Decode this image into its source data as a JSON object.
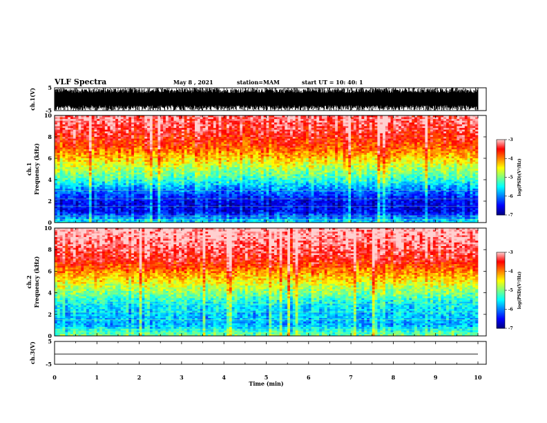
{
  "header": {
    "title": "VLF Spectra",
    "date": "May 8 , 2021",
    "station": "station=MAM",
    "start_ut": "start UT = 10: 40: 1"
  },
  "chart_data": [
    {
      "type": "line",
      "panel": "ch1-waveform",
      "ylabel": "ch.1(V)",
      "ylim": [
        -5,
        5
      ],
      "yticks": [
        "5",
        "-5"
      ],
      "x": [
        0,
        10
      ],
      "y_range_observed": [
        -5,
        5
      ],
      "series_color": "#000000"
    },
    {
      "type": "heatmap",
      "panel": "ch1-spectrogram",
      "ylabel": "ch.1\nFrequency (kHz)",
      "ylim": [
        0,
        10
      ],
      "yticks": [
        "0",
        "2",
        "4",
        "6",
        "8",
        "10"
      ],
      "frequency_kHz": [
        0,
        1,
        2,
        3,
        4,
        5,
        6,
        7,
        8,
        9,
        10
      ],
      "log_psd_profile": [
        -5.5,
        -6.5,
        -6.5,
        -6.0,
        -5.3,
        -4.8,
        -4.3,
        -3.8,
        -3.5,
        -3.3,
        -3.2
      ],
      "colorbar": {
        "min": -7,
        "max": -3,
        "ticks": [
          "-3",
          "-4",
          "-5",
          "-6",
          "-7"
        ],
        "label": "log(PSD)(V²/Hz)"
      }
    },
    {
      "type": "heatmap",
      "panel": "ch2-spectrogram",
      "ylabel": "ch.2\nFrequency (kHz)",
      "ylim": [
        0,
        10
      ],
      "yticks": [
        "0",
        "2",
        "4",
        "6",
        "8",
        "10"
      ],
      "frequency_kHz": [
        0,
        1,
        2,
        3,
        4,
        5,
        6,
        7,
        8,
        9,
        10
      ],
      "log_psd_profile": [
        -5.0,
        -5.8,
        -5.7,
        -5.5,
        -5.0,
        -4.5,
        -4.0,
        -3.5,
        -3.3,
        -3.1,
        -3.0
      ],
      "colorbar": {
        "min": -7,
        "max": -3,
        "ticks": [
          "-3",
          "-4",
          "-5",
          "-6",
          "-7"
        ],
        "label": "log(PSD)(V²/Hz)"
      }
    },
    {
      "type": "line",
      "panel": "ch3-waveform",
      "ylabel": "ch.3(V)",
      "ylim": [
        -5,
        5
      ],
      "yticks": [
        "5",
        "-5"
      ],
      "x": [
        0,
        10
      ],
      "y": [
        -0.5,
        -0.5
      ],
      "series_color": "#000000"
    }
  ],
  "x_axis": {
    "label": "Time (min)",
    "range": [
      0,
      10
    ],
    "ticks": [
      "0",
      "1",
      "2",
      "3",
      "4",
      "5",
      "6",
      "7",
      "8",
      "9",
      "10"
    ]
  },
  "colors": {
    "scale": [
      "#00007f",
      "#0000ff",
      "#0080ff",
      "#00ffff",
      "#80ff80",
      "#ffff00",
      "#ff8000",
      "#ff0000",
      "#ffd0d0"
    ]
  }
}
